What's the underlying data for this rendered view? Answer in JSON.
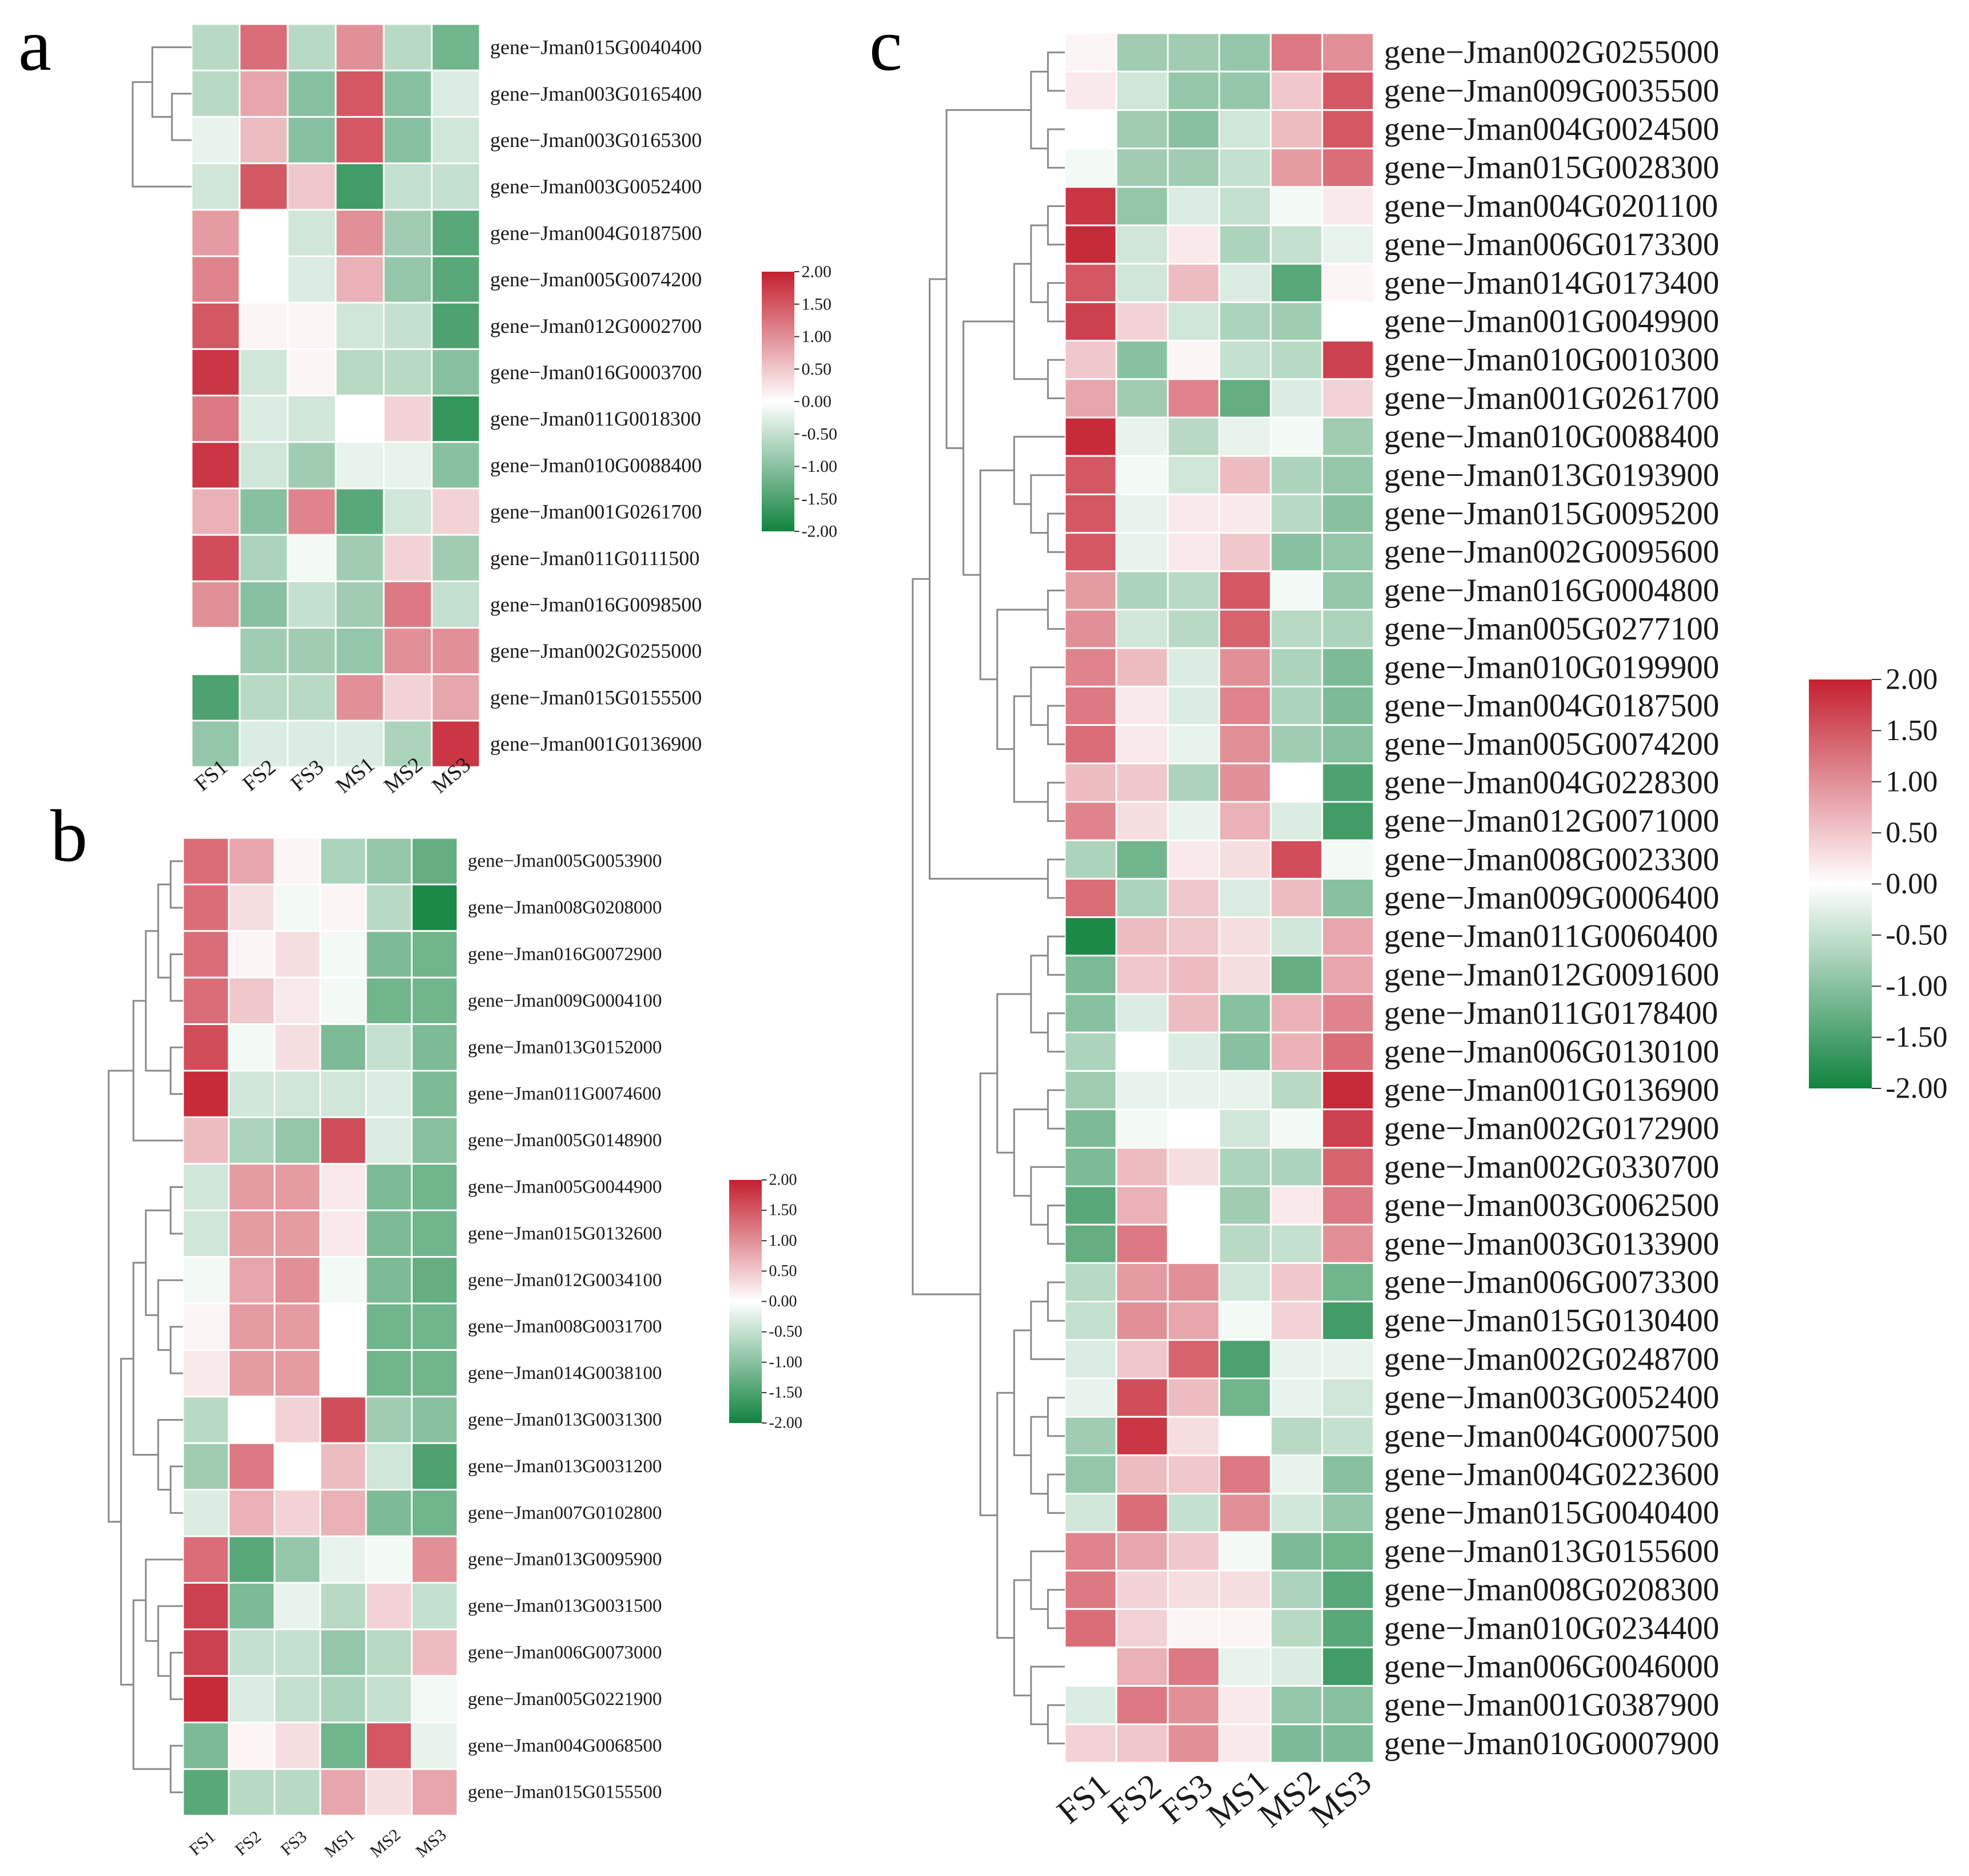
{
  "legend": {
    "ticks": [
      "2.00",
      "1.50",
      "1.00",
      "0.50",
      "0.00",
      "-0.50",
      "-1.00",
      "-1.50",
      "-2.00"
    ],
    "colors": {
      "high": "#c4202f",
      "mid": "#ffffff",
      "low": "#11833f"
    },
    "range": [
      -2,
      2
    ]
  },
  "chart_data": [
    {
      "panel": "a",
      "type": "heatmap",
      "columns": [
        "FS1",
        "FS2",
        "FS3",
        "MS1",
        "MS2",
        "MS3"
      ],
      "rows": [
        "gene−Jman015G0040400",
        "gene−Jman003G0165400",
        "gene−Jman003G0165300",
        "gene−Jman003G0052400",
        "gene−Jman004G0187500",
        "gene−Jman005G0074200",
        "gene−Jman012G0002700",
        "gene−Jman016G0003700",
        "gene−Jman011G0018300",
        "gene−Jman010G0088400",
        "gene−Jman001G0261700",
        "gene−Jman011G0111500",
        "gene−Jman016G0098500",
        "gene−Jman002G0255000",
        "gene−Jman015G0155500",
        "gene−Jman001G0136900"
      ],
      "values": [
        [
          -0.6,
          1.3,
          -0.6,
          1.0,
          -0.6,
          -1.2
        ],
        [
          -0.6,
          0.8,
          -1.0,
          1.5,
          -1.0,
          -0.3
        ],
        [
          -0.2,
          0.6,
          -1.0,
          1.5,
          -1.0,
          -0.4
        ],
        [
          -0.4,
          1.5,
          0.5,
          -1.6,
          -0.5,
          -0.5
        ],
        [
          0.9,
          0.0,
          -0.4,
          1.0,
          -0.8,
          -1.4
        ],
        [
          1.1,
          0.0,
          -0.3,
          0.7,
          -0.9,
          -1.4
        ],
        [
          1.5,
          0.1,
          0.1,
          -0.4,
          -0.5,
          -1.5
        ],
        [
          1.8,
          -0.4,
          0.1,
          -0.6,
          -0.6,
          -1.0
        ],
        [
          1.2,
          -0.3,
          -0.4,
          0.0,
          0.4,
          -1.7
        ],
        [
          1.8,
          -0.4,
          -0.8,
          -0.2,
          -0.2,
          -1.0
        ],
        [
          0.7,
          -1.0,
          1.1,
          -1.4,
          -0.4,
          0.4
        ],
        [
          1.6,
          -0.7,
          -0.1,
          -0.8,
          0.4,
          -0.8
        ],
        [
          1.0,
          -1.0,
          -0.5,
          -0.8,
          1.2,
          -0.5
        ],
        [
          0.0,
          -0.8,
          -0.8,
          -0.9,
          1.0,
          1.0
        ],
        [
          -1.5,
          -0.6,
          -0.6,
          1.0,
          0.4,
          0.8
        ],
        [
          -0.9,
          -0.3,
          -0.3,
          -0.3,
          -0.7,
          1.8
        ]
      ],
      "dendrogram": [
        [
          0,
          [
            1,
            2
          ]
        ],
        3,
        [
          [
            4,
            5
          ],
          [
            6,
            [
              7,
              [
                8,
                9
              ]
            ]
          ]
        ],
        [
          [
            10,
            [
              11,
              12
            ]
          ],
          [
            13,
            [
              14,
              15
            ]
          ]
        ]
      ]
    },
    {
      "panel": "b",
      "type": "heatmap",
      "columns": [
        "FS1",
        "FS2",
        "FS3",
        "MS1",
        "MS2",
        "MS3"
      ],
      "rows": [
        "gene−Jman005G0053900",
        "gene−Jman008G0208000",
        "gene−Jman016G0072900",
        "gene−Jman009G0004100",
        "gene−Jman013G0152000",
        "gene−Jman011G0074600",
        "gene−Jman005G0148900",
        "gene−Jman005G0044900",
        "gene−Jman015G0132600",
        "gene−Jman012G0034100",
        "gene−Jman008G0031700",
        "gene−Jman014G0038100",
        "gene−Jman013G0031300",
        "gene−Jman013G0031200",
        "gene−Jman007G0102800",
        "gene−Jman013G0095900",
        "gene−Jman013G0031500",
        "gene−Jman006G0073000",
        "gene−Jman005G0221900",
        "gene−Jman004G0068500",
        "gene−Jman015G0155500"
      ],
      "values": [
        [
          1.3,
          0.8,
          0.1,
          -0.7,
          -0.9,
          -1.3
        ],
        [
          1.3,
          0.3,
          -0.1,
          0.1,
          -0.6,
          -1.9
        ],
        [
          1.3,
          0.1,
          0.3,
          -0.1,
          -1.1,
          -1.2
        ],
        [
          1.3,
          0.5,
          0.2,
          -0.1,
          -1.2,
          -1.2
        ],
        [
          1.6,
          -0.1,
          0.3,
          -1.1,
          -0.5,
          -1.1
        ],
        [
          1.9,
          -0.4,
          -0.4,
          -0.4,
          -0.3,
          -1.1
        ],
        [
          0.6,
          -0.7,
          -0.9,
          1.6,
          -0.3,
          -1.0
        ],
        [
          -0.4,
          0.9,
          0.9,
          0.2,
          -1.1,
          -1.2
        ],
        [
          -0.4,
          0.9,
          0.9,
          0.2,
          -1.1,
          -1.2
        ],
        [
          -0.1,
          0.8,
          1.0,
          -0.1,
          -1.1,
          -1.3
        ],
        [
          0.1,
          0.9,
          0.9,
          0.0,
          -1.2,
          -1.2
        ],
        [
          0.2,
          0.9,
          0.9,
          0.0,
          -1.2,
          -1.2
        ],
        [
          -0.6,
          0.0,
          0.4,
          1.6,
          -0.8,
          -1.0
        ],
        [
          -0.8,
          1.2,
          0.0,
          0.6,
          -0.4,
          -1.5
        ],
        [
          -0.3,
          0.7,
          0.4,
          0.7,
          -1.1,
          -1.2
        ],
        [
          1.3,
          -1.4,
          -0.9,
          -0.2,
          -0.1,
          1.0
        ],
        [
          1.7,
          -1.1,
          -0.2,
          -0.6,
          0.4,
          -0.5
        ],
        [
          1.7,
          -0.5,
          -0.5,
          -0.9,
          -0.6,
          0.6
        ],
        [
          1.9,
          -0.3,
          -0.5,
          -0.7,
          -0.5,
          -0.1
        ],
        [
          -1.1,
          0.1,
          0.3,
          -1.2,
          1.5,
          -0.2
        ],
        [
          -1.4,
          -0.6,
          -0.6,
          0.8,
          0.3,
          0.8
        ]
      ],
      "dendrogram": [
        [
          [
            [
              [
                0,
                1
              ],
              [
                2,
                3
              ]
            ],
            [
              4,
              5
            ]
          ],
          6
        ],
        [
          [
            [
              [
                7,
                8
              ],
              [
                9,
                [
                  10,
                  11
                ]
              ]
            ],
            [
              12,
              [
                13,
                14
              ]
            ]
          ],
          [
            [
              15,
              [
                16,
                [
                  17,
                  18
                ]
              ]
            ],
            [
              19,
              20
            ]
          ]
        ]
      ]
    },
    {
      "panel": "c",
      "type": "heatmap",
      "columns": [
        "FS1",
        "FS2",
        "FS3",
        "MS1",
        "MS2",
        "MS3"
      ],
      "rows": [
        "gene−Jman002G0255000",
        "gene−Jman009G0035500",
        "gene−Jman004G0024500",
        "gene−Jman015G0028300",
        "gene−Jman004G0201100",
        "gene−Jman006G0173300",
        "gene−Jman014G0173400",
        "gene−Jman001G0049900",
        "gene−Jman010G0010300",
        "gene−Jman001G0261700",
        "gene−Jman010G0088400",
        "gene−Jman013G0193900",
        "gene−Jman015G0095200",
        "gene−Jman002G0095600",
        "gene−Jman016G0004800",
        "gene−Jman005G0277100",
        "gene−Jman010G0199900",
        "gene−Jman004G0187500",
        "gene−Jman005G0074200",
        "gene−Jman004G0228300",
        "gene−Jman012G0071000",
        "gene−Jman008G0023300",
        "gene−Jman009G0006400",
        "gene−Jman011G0060400",
        "gene−Jman012G0091600",
        "gene−Jman011G0178400",
        "gene−Jman006G0130100",
        "gene−Jman001G0136900",
        "gene−Jman002G0172900",
        "gene−Jman002G0330700",
        "gene−Jman003G0062500",
        "gene−Jman003G0133900",
        "gene−Jman006G0073300",
        "gene−Jman015G0130400",
        "gene−Jman002G0248700",
        "gene−Jman003G0052400",
        "gene−Jman004G0007500",
        "gene−Jman004G0223600",
        "gene−Jman015G0040400",
        "gene−Jman013G0155600",
        "gene−Jman008G0208300",
        "gene−Jman010G0234400",
        "gene−Jman006G0046000",
        "gene−Jman001G0387900",
        "gene−Jman010G0007900"
      ],
      "values": [
        [
          0.1,
          -0.8,
          -0.8,
          -0.9,
          1.2,
          1.0
        ],
        [
          0.2,
          -0.4,
          -0.9,
          -0.9,
          0.5,
          1.5
        ],
        [
          0.0,
          -0.8,
          -1.0,
          -0.4,
          0.6,
          1.5
        ],
        [
          -0.1,
          -0.8,
          -0.8,
          -0.5,
          0.9,
          1.3
        ],
        [
          1.8,
          -0.9,
          -0.3,
          -0.5,
          -0.1,
          0.2
        ],
        [
          1.9,
          -0.4,
          0.2,
          -0.7,
          -0.5,
          -0.2
        ],
        [
          1.5,
          -0.4,
          0.6,
          -0.3,
          -1.4,
          0.1
        ],
        [
          1.7,
          0.4,
          -0.4,
          -0.7,
          -0.8,
          0.0
        ],
        [
          0.5,
          -1.0,
          0.1,
          -0.5,
          -0.6,
          1.7
        ],
        [
          0.8,
          -0.8,
          1.1,
          -1.3,
          -0.3,
          0.4
        ],
        [
          1.9,
          -0.2,
          -0.6,
          -0.2,
          -0.1,
          -0.8
        ],
        [
          1.5,
          -0.1,
          -0.4,
          0.6,
          -0.7,
          -0.9
        ],
        [
          1.5,
          -0.2,
          0.2,
          0.2,
          -0.6,
          -1.0
        ],
        [
          1.5,
          -0.2,
          0.2,
          0.5,
          -1.0,
          -0.9
        ],
        [
          0.9,
          -0.7,
          -0.6,
          1.5,
          -0.1,
          -0.9
        ],
        [
          1.0,
          -0.4,
          -0.6,
          1.4,
          -0.6,
          -0.7
        ],
        [
          1.1,
          0.6,
          -0.3,
          1.0,
          -0.7,
          -1.1
        ],
        [
          1.2,
          0.2,
          -0.3,
          1.1,
          -0.7,
          -1.1
        ],
        [
          1.3,
          0.2,
          -0.2,
          1.0,
          -0.8,
          -1.0
        ],
        [
          0.6,
          0.5,
          -0.7,
          1.0,
          0.0,
          -1.5
        ],
        [
          1.1,
          0.3,
          -0.2,
          0.7,
          -0.3,
          -1.6
        ],
        [
          -0.7,
          -1.2,
          0.2,
          0.3,
          1.6,
          -0.1
        ],
        [
          1.3,
          -0.7,
          0.5,
          -0.3,
          0.6,
          -1.0
        ],
        [
          -1.9,
          0.6,
          0.5,
          0.3,
          -0.4,
          0.8
        ],
        [
          -1.1,
          0.5,
          0.6,
          0.3,
          -1.3,
          0.8
        ],
        [
          -1.0,
          -0.3,
          0.6,
          -1.0,
          0.7,
          1.1
        ],
        [
          -0.7,
          0.0,
          -0.3,
          -1.0,
          0.7,
          1.3
        ],
        [
          -0.8,
          -0.2,
          -0.2,
          -0.2,
          -0.6,
          1.9
        ],
        [
          -1.1,
          -0.1,
          0.0,
          -0.4,
          -0.1,
          1.7
        ],
        [
          -1.1,
          0.6,
          0.3,
          -0.7,
          -0.7,
          1.4
        ],
        [
          -1.4,
          0.7,
          0.0,
          -0.8,
          0.2,
          1.2
        ],
        [
          -1.3,
          1.2,
          0.0,
          -0.6,
          -0.5,
          1.0
        ],
        [
          -0.6,
          0.9,
          1.0,
          -0.4,
          0.5,
          -1.2
        ],
        [
          -0.5,
          1.0,
          0.8,
          -0.1,
          0.4,
          -1.6
        ],
        [
          -0.3,
          0.5,
          1.4,
          -1.5,
          -0.2,
          -0.2
        ],
        [
          -0.2,
          1.6,
          0.6,
          -1.2,
          -0.2,
          -0.4
        ],
        [
          -0.8,
          1.8,
          0.3,
          0.0,
          -0.6,
          -0.5
        ],
        [
          -0.9,
          0.6,
          0.5,
          1.2,
          -0.2,
          -1.0
        ],
        [
          -0.4,
          1.3,
          -0.5,
          1.0,
          -0.4,
          -0.9
        ],
        [
          1.1,
          0.8,
          0.5,
          -0.1,
          -1.1,
          -1.2
        ],
        [
          1.2,
          0.4,
          0.3,
          0.3,
          -0.7,
          -1.4
        ],
        [
          1.3,
          0.4,
          0.1,
          0.1,
          -0.6,
          -1.4
        ],
        [
          0.0,
          0.7,
          1.2,
          -0.2,
          -0.3,
          -1.6
        ],
        [
          -0.3,
          1.2,
          1.0,
          0.2,
          -0.9,
          -1.0
        ],
        [
          0.4,
          0.5,
          1.0,
          0.2,
          -1.1,
          -1.1
        ]
      ],
      "dendrogram": [
        [
          [
            [
              [
                0,
                1
              ],
              [
                2,
                3
              ]
            ],
            [
              [
                [
                  [
                    4,
                    5
                  ],
                  [
                    6,
                    7
                  ]
                ],
                [
                  8,
                  9
                ]
              ],
              [
                [
                  10,
                  [
                    11,
                    [
                      12,
                      13
                    ]
                  ]
                ],
                [
                  [
                    14,
                    15
                  ],
                  [
                    [
                      16,
                      [
                        17,
                        18
                      ]
                    ],
                    [
                      19,
                      20
                    ]
                  ]
                ]
              ]
            ]
          ],
          [
            21,
            22
          ]
        ],
        [
          [
            [
              [
                23,
                24
              ],
              [
                25,
                26
              ]
            ],
            [
              [
                27,
                28
              ],
              [
                29,
                [
                  30,
                  31
                ]
              ]
            ]
          ],
          [
            [
              [
                [
                  32,
                  33
                ],
                34
              ],
              [
                [
                  35,
                  36
                ],
                [
                  37,
                  38
                ]
              ]
            ],
            [
              [
                39,
                [
                  40,
                  41
                ]
              ],
              [
                42,
                [
                  43,
                  44
                ]
              ]
            ]
          ]
        ]
      ]
    }
  ]
}
